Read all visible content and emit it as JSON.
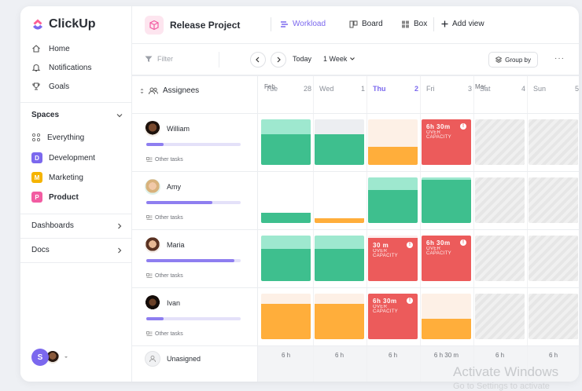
{
  "sidebar": {
    "logo_text": "ClickUp",
    "nav": [
      {
        "label": "Home",
        "icon": "home-icon"
      },
      {
        "label": "Notifications",
        "icon": "bell-icon"
      },
      {
        "label": "Goals",
        "icon": "trophy-icon"
      }
    ],
    "spaces_label": "Spaces",
    "everything_label": "Everything",
    "spaces": [
      {
        "letter": "D",
        "label": "Development",
        "color": "#7b68ee"
      },
      {
        "letter": "M",
        "label": "Marketing",
        "color": "#f5b400"
      },
      {
        "letter": "P",
        "label": "Product",
        "color": "#f25ca2"
      }
    ],
    "dashboards_label": "Dashboards",
    "docs_label": "Docs",
    "user_initial": "S"
  },
  "header": {
    "project_title": "Release Project",
    "tabs": [
      {
        "label": "Workload",
        "icon": "workload-icon"
      },
      {
        "label": "Board",
        "icon": "board-icon"
      },
      {
        "label": "Box",
        "icon": "box-icon"
      },
      {
        "label": "Add view",
        "icon": "plus-icon"
      }
    ]
  },
  "toolbar": {
    "filter_label": "Filter",
    "today_label": "Today",
    "range_label": "1 Week",
    "group_by_label": "Group by",
    "more_label": "···"
  },
  "grid": {
    "assignees_label": "Assignees",
    "months": [
      "Feb",
      "Mar"
    ],
    "days": [
      {
        "dow": "Tue",
        "num": "28"
      },
      {
        "dow": "Wed",
        "num": "1"
      },
      {
        "dow": "Thu",
        "num": "2"
      },
      {
        "dow": "Fri",
        "num": "3"
      },
      {
        "dow": "Sat",
        "num": "4"
      },
      {
        "dow": "Sun",
        "num": "5"
      }
    ],
    "people": [
      {
        "name": "William",
        "other_tasks": "Other tasks",
        "load": 0.18
      },
      {
        "name": "Amy",
        "other_tasks": "Other tasks",
        "load": 0.7
      },
      {
        "name": "Maria",
        "other_tasks": "Other tasks",
        "load": 0.93
      },
      {
        "name": "Ivan",
        "other_tasks": "Other tasks",
        "load": 0.18
      }
    ],
    "unassigned_label": "Unasigned",
    "over_capacity_label": "OVER CAPACITY",
    "over_amounts": {
      "william_fri": "6h 30m",
      "maria_thu": "30 m",
      "maria_fri": "6h 30m",
      "ivan_thu": "6h 30m"
    },
    "footer_totals": [
      "6 h",
      "6 h",
      "6 h",
      "6 h  30 m",
      "6 h",
      "6 h"
    ]
  },
  "watermark": {
    "line1": "Activate Windows",
    "line2": "Go to Settings to activate"
  },
  "colors": {
    "accent": "#7b68ee",
    "green": "#3ebf8e",
    "green_light": "#9ee8cf",
    "orange": "#ffae3b",
    "orange_light": "#fdf0e6",
    "red": "#ec5b5b"
  }
}
